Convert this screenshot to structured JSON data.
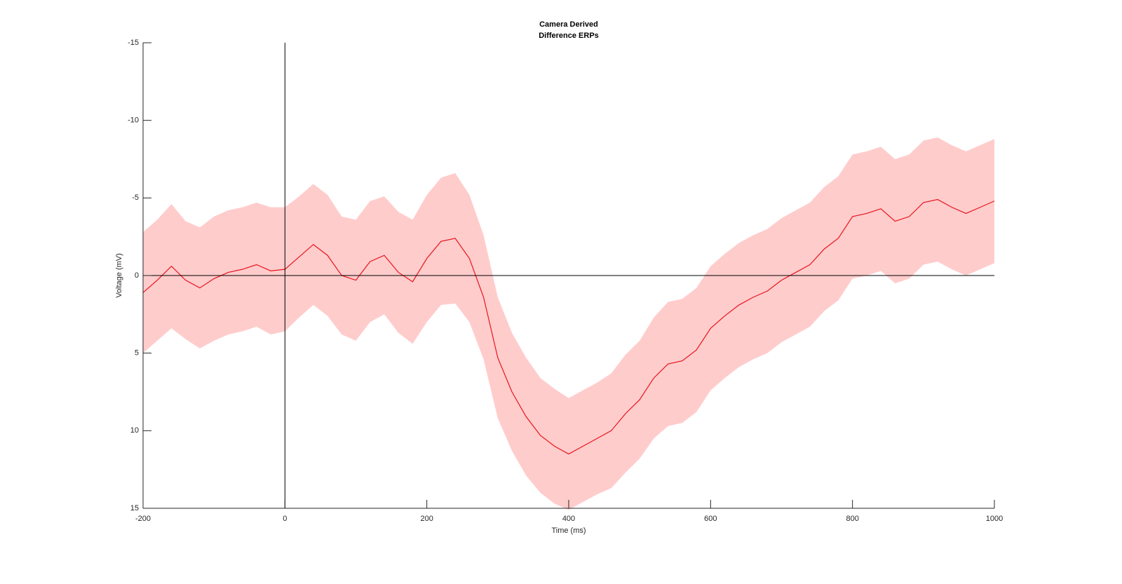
{
  "chart_data": {
    "type": "line_band",
    "title": [
      "Camera Derived",
      "Difference ERPs"
    ],
    "x_label": "Time (ms)",
    "y_label": "Voltage (mV)",
    "x": [
      -200,
      -180,
      -160,
      -140,
      -120,
      -100,
      -80,
      -60,
      -40,
      -20,
      0,
      20,
      40,
      60,
      80,
      100,
      120,
      140,
      160,
      180,
      200,
      220,
      240,
      260,
      280,
      300,
      320,
      340,
      360,
      380,
      400,
      420,
      440,
      460,
      480,
      500,
      520,
      540,
      560,
      580,
      600,
      620,
      640,
      660,
      680,
      700,
      720,
      740,
      760,
      780,
      800,
      820,
      840,
      860,
      880,
      900,
      920,
      940,
      960,
      980,
      1000
    ],
    "series": [
      {
        "color": "#e8141b",
        "band_color": "#ffcccc",
        "values": [
          1.1,
          0.3,
          -0.6,
          0.3,
          0.8,
          0.2,
          -0.2,
          -0.4,
          -0.7,
          -0.3,
          -0.4,
          -1.2,
          -2.0,
          -1.3,
          0,
          0.3,
          -0.9,
          -1.3,
          -0.2,
          0.4,
          -1.1,
          -2.2,
          -2.4,
          -1.1,
          1.4,
          5.3,
          7.5,
          9.1,
          10.3,
          11.0,
          11.5,
          11.0,
          10.5,
          10.0,
          8.9,
          8.0,
          6.6,
          5.7,
          5.5,
          4.8,
          3.4,
          2.6,
          1.9,
          1.4,
          1.0,
          0.3,
          -0.2,
          -0.7,
          -1.7,
          -2.4,
          -3.8,
          -4.0,
          -4.3,
          -3.5,
          -3.8,
          -4.7,
          -4.9,
          -4.4,
          -4.0,
          -4.4,
          -4.8
        ],
        "error": [
          3.9,
          3.9,
          4.0,
          3.8,
          3.9,
          4.0,
          4.0,
          4.0,
          4.0,
          4.1,
          4.0,
          3.9,
          3.9,
          3.9,
          3.8,
          3.9,
          3.9,
          3.8,
          3.9,
          4.0,
          4.1,
          4.1,
          4.2,
          4.1,
          4.0,
          3.9,
          3.8,
          3.8,
          3.7,
          3.7,
          3.6,
          3.6,
          3.6,
          3.7,
          3.8,
          3.8,
          3.9,
          4.0,
          4.0,
          4.0,
          4.0,
          4.0,
          4.0,
          4.0,
          4.0,
          4.0,
          4.0,
          4.0,
          4.0,
          4.0,
          4.0,
          4.0,
          4.0,
          4.0,
          4.0,
          4.0,
          4.0,
          4.0,
          4.0,
          4.0,
          4.0
        ]
      }
    ],
    "xlim": [
      -200,
      1000
    ],
    "xticks": [
      -200,
      0,
      200,
      400,
      600,
      800,
      1000
    ],
    "ylim": [
      -15,
      15
    ],
    "yticks": [
      -15,
      -10,
      -5,
      0,
      5,
      10,
      15
    ],
    "y_reversed": true,
    "x_reference": 0,
    "y_reference": 0
  }
}
